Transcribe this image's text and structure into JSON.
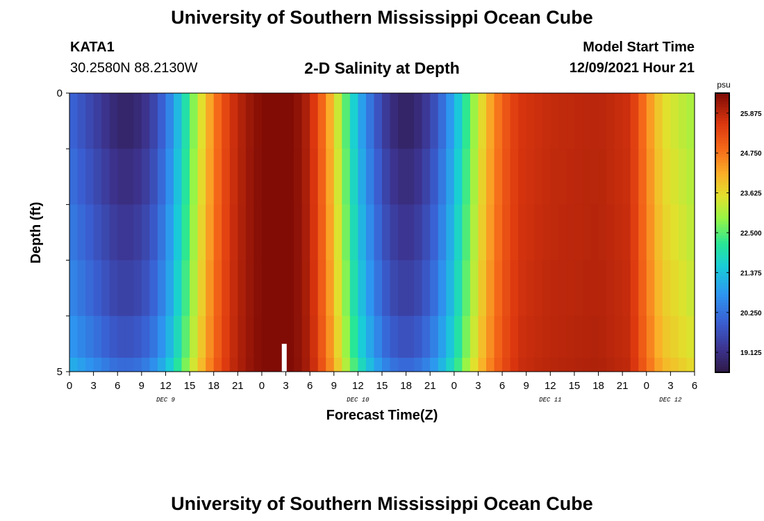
{
  "header": {
    "title": "University of Southern Mississippi Ocean Cube",
    "station_id": "KATA1",
    "coordinates": "30.2580N  88.2130W",
    "subtitle": "2-D Salinity at Depth",
    "model_start_label": "Model Start Time",
    "model_start_value": "12/09/2021 Hour 21"
  },
  "footer": {
    "title": "University of Southern Mississippi Ocean Cube"
  },
  "chart_data": {
    "type": "heatmap",
    "title": "2-D Salinity at Depth",
    "xlabel": "Forecast Time(Z)",
    "ylabel": "Depth (ft)",
    "x_start": "12/09/2021 Hour 0",
    "x_step_hours": 1,
    "x_tick_labels": [
      "0",
      "3",
      "6",
      "9",
      "12",
      "15",
      "18",
      "21",
      "0",
      "3",
      "6",
      "9",
      "12",
      "15",
      "18",
      "21",
      "0",
      "3",
      "6",
      "9",
      "12",
      "15",
      "18",
      "21",
      "0",
      "3",
      "6"
    ],
    "day_labels": [
      "DEC 9",
      "DEC 10",
      "DEC 11",
      "DEC 12"
    ],
    "y_tick_labels": [
      "0",
      "5"
    ],
    "ylim": [
      0,
      5
    ],
    "depth_layers": [
      0,
      1,
      2,
      3,
      4,
      4.75
    ],
    "colorbar": {
      "unit": "psu",
      "min": 18.56,
      "max": 26.44,
      "tick_labels": [
        "25.875",
        "24.750",
        "23.625",
        "22.500",
        "21.375",
        "20.250",
        "19.125"
      ],
      "tick_values": [
        25.875,
        24.75,
        23.625,
        22.5,
        21.375,
        20.25,
        19.125
      ]
    },
    "salinity_profile": [
      {
        "hour": 0,
        "value": 20.1
      },
      {
        "hour": 4,
        "value": 19.3
      },
      {
        "hour": 6,
        "value": 18.9
      },
      {
        "hour": 8,
        "value": 18.9
      },
      {
        "hour": 10,
        "value": 19.3
      },
      {
        "hour": 12,
        "value": 20.2
      },
      {
        "hour": 14,
        "value": 21.6
      },
      {
        "hour": 16,
        "value": 23.2
      },
      {
        "hour": 18,
        "value": 24.6
      },
      {
        "hour": 20,
        "value": 25.6
      },
      {
        "hour": 22,
        "value": 26.1
      },
      {
        "hour": 24,
        "value": 26.4
      },
      {
        "hour": 28,
        "value": 26.4
      },
      {
        "hour": 30,
        "value": 25.9
      },
      {
        "hour": 32,
        "value": 24.6
      },
      {
        "hour": 34,
        "value": 22.9
      },
      {
        "hour": 36,
        "value": 21.2
      },
      {
        "hour": 38,
        "value": 20.0
      },
      {
        "hour": 40,
        "value": 19.1
      },
      {
        "hour": 42,
        "value": 18.8
      },
      {
        "hour": 44,
        "value": 19.1
      },
      {
        "hour": 46,
        "value": 19.9
      },
      {
        "hour": 48,
        "value": 21.1
      },
      {
        "hour": 50,
        "value": 22.6
      },
      {
        "hour": 52,
        "value": 24.0
      },
      {
        "hour": 54,
        "value": 25.0
      },
      {
        "hour": 56,
        "value": 25.6
      },
      {
        "hour": 60,
        "value": 25.8
      },
      {
        "hour": 66,
        "value": 25.9
      },
      {
        "hour": 70,
        "value": 25.7
      },
      {
        "hour": 72,
        "value": 24.6
      },
      {
        "hour": 74,
        "value": 23.6
      },
      {
        "hour": 78,
        "value": 23.0
      }
    ],
    "layer_offsets": [
      0.0,
      0.2,
      0.4,
      0.6,
      0.9,
      1.3
    ],
    "marker": {
      "hour": 26.5,
      "depth_from": 4.5,
      "depth_to": 5
    }
  }
}
